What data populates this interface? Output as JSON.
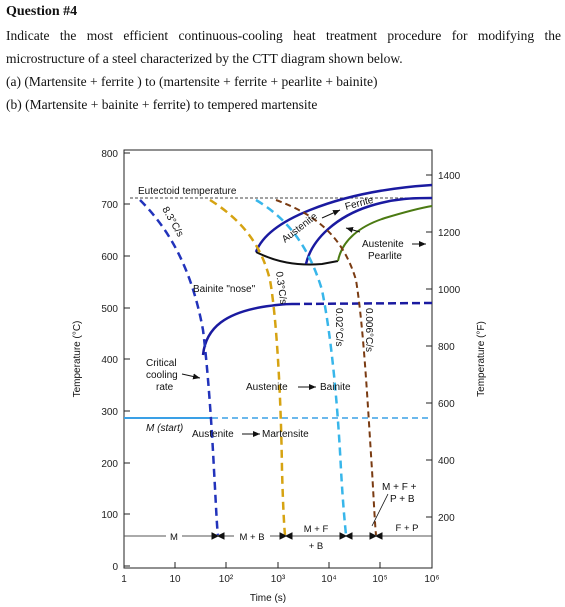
{
  "question": {
    "title": "Question #4",
    "line1": "Indicate the most efficient continuous-cooling heat treatment procedure for modifying the",
    "line2": "microstructure of a steel characterized by the CTT diagram shown below.",
    "part_a": "(a) (Martensite + ferrite ) to (martensite + ferrite + pearlite + bainite)",
    "part_b": "(b) (Martensite + bainite + ferrite) to tempered martensite"
  },
  "diagram": {
    "ylabel_c": "Temperature (°C)",
    "ylabel_f": "Temperature (°F)",
    "xlabel": "Time (s)",
    "y_ticks_c": [
      "800",
      "700",
      "600",
      "500",
      "400",
      "300",
      "200",
      "100",
      "0"
    ],
    "y_ticks_f": [
      "1400",
      "1200",
      "1000",
      "800",
      "600",
      "400",
      "200"
    ],
    "x_ticks": [
      "1",
      "10",
      "10²",
      "10³",
      "10⁴",
      "10⁵",
      "10⁶"
    ],
    "labels": {
      "eutectoid": "Eutectoid temperature",
      "austenite_arrow": "Austenite",
      "ferrite": "Ferrite",
      "austenite_pearlite_1": "Austenite",
      "austenite_pearlite_2": "Pearlite",
      "bainite_nose": "Bainite \"nose\"",
      "critical_1": "Critical",
      "critical_2": "cooling",
      "critical_3": "rate",
      "aus_bainite_a": "Austenite",
      "aus_bainite_b": "Bainite",
      "m_start": "M (start)",
      "aus_mart_a": "Austenite",
      "aus_mart_b": "Martensite",
      "rate_83": "8.3°C/s",
      "rate_03": "0.3°C/s",
      "rate_002": "0.02°C/s",
      "rate_0006": "0.006°C/s",
      "mfpb_1": "M + F +",
      "mfpb_2": "P + B",
      "prod_m": "M",
      "prod_mb": "M + B",
      "prod_mf_1": "M + F",
      "prod_mf_2": "+ B",
      "prod_fp": "F + P"
    },
    "colors": {
      "nose_curve": "#1a1aa0",
      "pearlite_curve": "#4b7a12",
      "rate_83": "#2233bb",
      "rate_03": "#d6a312",
      "rate_002": "#38b6ea",
      "rate_0006": "#7a3b12",
      "m_start": "#3aa0e6"
    }
  }
}
